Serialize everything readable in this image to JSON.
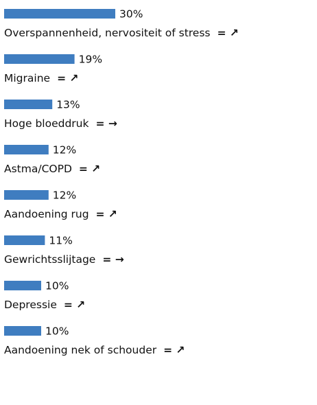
{
  "chart_data": {
    "type": "bar",
    "orientation": "horizontal",
    "color": "#3f7dc0",
    "categories": [
      "Overspannenheid, nervositeit of stress",
      "Migraine",
      "Hoge bloeddruk",
      "Astma/COPD",
      "Aandoening rug",
      "Gewrichtsslijtage",
      "Depressie",
      "Aandoening nek of schouder"
    ],
    "values": [
      30,
      19,
      13,
      12,
      12,
      11,
      10,
      10
    ],
    "value_labels": [
      "30%",
      "19%",
      "13%",
      "12%",
      "12%",
      "11%",
      "10%",
      "10%"
    ],
    "trends": [
      "= ↗",
      "= ↗",
      "= →",
      "= ↗",
      "= ↗",
      "= →",
      "= ↗",
      "= ↗"
    ]
  }
}
